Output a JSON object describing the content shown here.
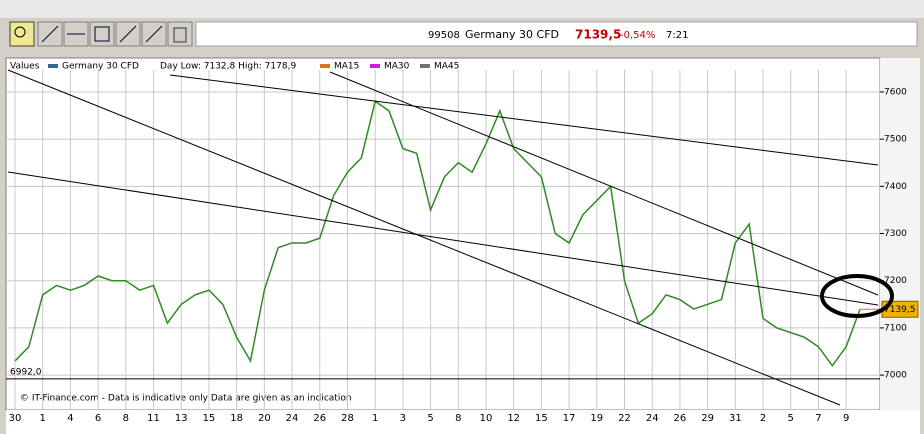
{
  "toolbar": {
    "code": "99508",
    "instrument": "Germany 30 CFD",
    "price": "7139,5",
    "change": "-0,54%",
    "time": "7:21"
  },
  "chart_data": {
    "type": "line",
    "legend_title": "Values",
    "day_range": "Day Low: 7132,8 High: 7178,9",
    "indicators": [
      {
        "name": "MA15",
        "color": "#e07020"
      },
      {
        "name": "MA30",
        "color": "#d020d0"
      },
      {
        "name": "MA45",
        "color": "#707070"
      }
    ],
    "categories": [
      "30",
      null,
      "1",
      null,
      "4",
      null,
      "6",
      null,
      "8",
      null,
      "11",
      null,
      "13",
      null,
      "15",
      null,
      "18",
      null,
      "20",
      null,
      "24",
      null,
      "26",
      null,
      "28",
      null,
      "1",
      null,
      "3",
      null,
      "5",
      null,
      "8",
      null,
      "10",
      null,
      "12",
      null,
      "15",
      null,
      "17",
      null,
      "19",
      null,
      "22",
      null,
      "24",
      null,
      "26",
      null,
      "29",
      null,
      "31",
      null,
      "2",
      null,
      "5",
      null,
      "7",
      null,
      "9",
      null
    ],
    "series": [
      {
        "name": "Germany 30 CFD",
        "color": "#2e8b22",
        "values": [
          7030,
          7060,
          7170,
          7190,
          7180,
          7190,
          7210,
          7200,
          7200,
          7180,
          7190,
          7110,
          7150,
          7170,
          7180,
          7150,
          7080,
          7030,
          7180,
          7270,
          7280,
          7280,
          7290,
          7380,
          7430,
          7460,
          7580,
          7560,
          7480,
          7470,
          7350,
          7420,
          7450,
          7430,
          7490,
          7560,
          7480,
          7450,
          7420,
          7300,
          7280,
          7340,
          7370,
          7400,
          7200,
          7110,
          7130,
          7170,
          7160,
          7140,
          7150,
          7160,
          7280,
          7320,
          7120,
          7100,
          7090,
          7080,
          7060,
          7020,
          7060,
          7139.5
        ]
      }
    ],
    "ylim": [
      6926,
      7672
    ],
    "yticks": [
      7000,
      7100,
      7200,
      7300,
      7400,
      7500,
      7600
    ],
    "grid": true,
    "reference_line": {
      "value": 6992,
      "label": "6992,0"
    },
    "last_price": {
      "value": 7139.5,
      "label": "7139,5"
    },
    "footnote": "© IT-Finance.com - Data is indicative only Data are given as an indication"
  }
}
